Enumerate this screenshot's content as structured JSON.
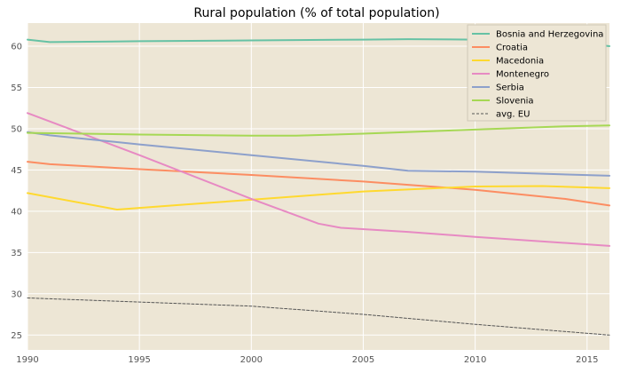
{
  "chart_data": {
    "type": "line",
    "title": "Rural population (% of total population)",
    "xlabel": "",
    "ylabel": "",
    "xlim": [
      1990,
      2016
    ],
    "ylim": [
      23.2,
      62.8
    ],
    "x_ticks": [
      1990,
      1995,
      2000,
      2005,
      2010,
      2015
    ],
    "y_ticks": [
      25,
      30,
      35,
      40,
      45,
      50,
      55,
      60
    ],
    "grid": true,
    "legend_position": "top-right",
    "background_color": "#ede6d5",
    "grid_color": "#ffffff",
    "series": [
      {
        "name": "Bosnia and Herzegovina",
        "color": "#66c2a5",
        "style": "solid",
        "points": [
          [
            1990,
            60.8
          ],
          [
            1991,
            60.5
          ],
          [
            1995,
            60.6
          ],
          [
            2000,
            60.7
          ],
          [
            2005,
            60.8
          ],
          [
            2007,
            60.85
          ],
          [
            2010,
            60.8
          ],
          [
            2014,
            60.6
          ],
          [
            2016,
            60.0
          ]
        ]
      },
      {
        "name": "Croatia",
        "color": "#fc8d62",
        "style": "solid",
        "points": [
          [
            1990,
            46.0
          ],
          [
            1991,
            45.7
          ],
          [
            1995,
            45.1
          ],
          [
            2000,
            44.4
          ],
          [
            2005,
            43.6
          ],
          [
            2010,
            42.6
          ],
          [
            2014,
            41.5
          ],
          [
            2016,
            40.7
          ]
        ]
      },
      {
        "name": "Macedonia",
        "color": "#ffd92f",
        "style": "solid",
        "points": [
          [
            1990,
            42.2
          ],
          [
            1994,
            40.2
          ],
          [
            1997,
            40.8
          ],
          [
            2000,
            41.4
          ],
          [
            2005,
            42.4
          ],
          [
            2010,
            43.0
          ],
          [
            2013,
            43.05
          ],
          [
            2016,
            42.8
          ]
        ]
      },
      {
        "name": "Montenegro",
        "color": "#e78ac3",
        "style": "solid",
        "points": [
          [
            1990,
            51.9
          ],
          [
            1995,
            46.8
          ],
          [
            2000,
            41.5
          ],
          [
            2003,
            38.5
          ],
          [
            2004,
            38.0
          ],
          [
            2007,
            37.5
          ],
          [
            2010,
            36.9
          ],
          [
            2016,
            35.8
          ]
        ]
      },
      {
        "name": "Serbia",
        "color": "#8da0cb",
        "style": "solid",
        "points": [
          [
            1990,
            49.6
          ],
          [
            1991,
            49.2
          ],
          [
            1995,
            48.1
          ],
          [
            2000,
            46.8
          ],
          [
            2005,
            45.5
          ],
          [
            2007,
            44.9
          ],
          [
            2010,
            44.8
          ],
          [
            2016,
            44.3
          ]
        ]
      },
      {
        "name": "Slovenia",
        "color": "#a6d854",
        "style": "solid",
        "points": [
          [
            1990,
            49.5
          ],
          [
            1995,
            49.3
          ],
          [
            2000,
            49.15
          ],
          [
            2002,
            49.15
          ],
          [
            2005,
            49.4
          ],
          [
            2010,
            49.9
          ],
          [
            2014,
            50.3
          ],
          [
            2016,
            50.4
          ]
        ]
      },
      {
        "name": "avg. EU",
        "color": "#555555",
        "style": "dashed",
        "points": [
          [
            1990,
            29.5
          ],
          [
            1995,
            29.0
          ],
          [
            2000,
            28.5
          ],
          [
            2005,
            27.5
          ],
          [
            2010,
            26.3
          ],
          [
            2016,
            25.0
          ]
        ]
      }
    ]
  }
}
